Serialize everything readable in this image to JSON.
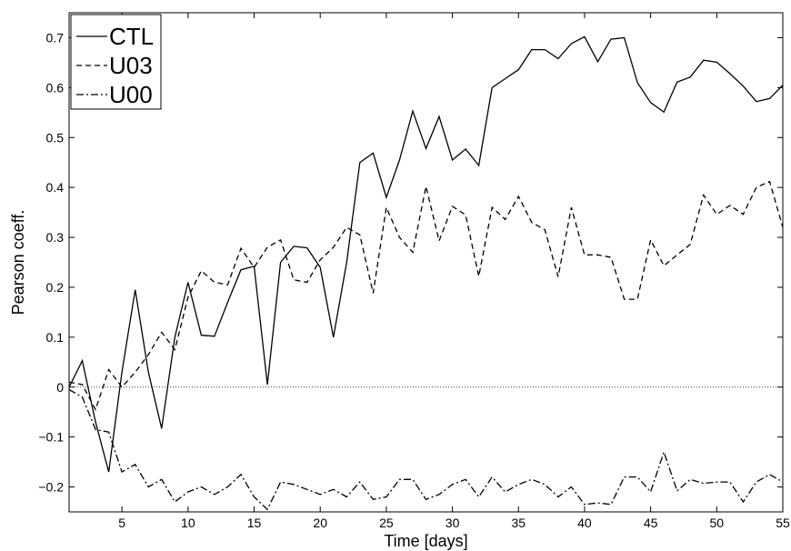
{
  "chart_data": {
    "type": "line",
    "xlabel": "Time [days]",
    "ylabel": "Pearson coeff.",
    "xlim": [
      1,
      55
    ],
    "ylim": [
      -0.25,
      0.75
    ],
    "xticks": [
      5,
      10,
      15,
      20,
      25,
      30,
      35,
      40,
      45,
      50,
      55
    ],
    "yticks": [
      -0.2,
      -0.1,
      0,
      0.1,
      0.2,
      0.3,
      0.4,
      0.5,
      0.6,
      0.7
    ],
    "x": [
      1,
      2,
      3,
      4,
      5,
      6,
      7,
      8,
      9,
      10,
      11,
      12,
      13,
      14,
      15,
      16,
      17,
      18,
      19,
      20,
      21,
      22,
      23,
      24,
      25,
      26,
      27,
      28,
      29,
      30,
      31,
      32,
      33,
      34,
      35,
      36,
      37,
      38,
      39,
      40,
      41,
      42,
      43,
      44,
      45,
      46,
      47,
      48,
      49,
      50,
      51,
      52,
      53,
      54,
      55
    ],
    "grid": false,
    "legend_position": "top-left",
    "zero_line": true,
    "series": [
      {
        "name": "CTL",
        "dash": "solid",
        "values": [
          0.0,
          0.053,
          -0.07,
          -0.17,
          0.03,
          0.195,
          0.03,
          -0.083,
          0.1,
          0.21,
          0.104,
          0.102,
          0.17,
          0.235,
          0.242,
          0.005,
          0.25,
          0.282,
          0.279,
          0.24,
          0.1,
          0.25,
          0.45,
          0.469,
          0.38,
          0.455,
          0.553,
          0.478,
          0.542,
          0.455,
          0.477,
          0.444,
          0.6,
          0.618,
          0.636,
          0.676,
          0.676,
          0.658,
          0.688,
          0.702,
          0.652,
          0.697,
          0.7,
          0.61,
          0.57,
          0.551,
          0.611,
          0.621,
          0.655,
          0.651,
          0.628,
          0.603,
          0.572,
          0.578,
          0.605
        ]
      },
      {
        "name": "U03",
        "dash": "dashed",
        "values": [
          0.01,
          0.005,
          -0.045,
          0.035,
          0.0,
          0.03,
          0.065,
          0.11,
          0.075,
          0.18,
          0.233,
          0.21,
          0.205,
          0.278,
          0.24,
          0.28,
          0.295,
          0.215,
          0.21,
          0.255,
          0.28,
          0.32,
          0.305,
          0.188,
          0.36,
          0.3,
          0.27,
          0.402,
          0.293,
          0.362,
          0.345,
          0.222,
          0.36,
          0.336,
          0.382,
          0.33,
          0.315,
          0.221,
          0.36,
          0.265,
          0.265,
          0.26,
          0.176,
          0.176,
          0.295,
          0.243,
          0.265,
          0.286,
          0.385,
          0.346,
          0.364,
          0.346,
          0.4,
          0.412,
          0.32
        ]
      },
      {
        "name": "U00",
        "dash": "dashdot",
        "values": [
          -0.005,
          -0.02,
          -0.085,
          -0.09,
          -0.17,
          -0.155,
          -0.2,
          -0.185,
          -0.23,
          -0.21,
          -0.2,
          -0.215,
          -0.2,
          -0.175,
          -0.22,
          -0.245,
          -0.19,
          -0.195,
          -0.205,
          -0.215,
          -0.205,
          -0.22,
          -0.19,
          -0.225,
          -0.22,
          -0.185,
          -0.185,
          -0.225,
          -0.215,
          -0.195,
          -0.185,
          -0.22,
          -0.18,
          -0.21,
          -0.195,
          -0.185,
          -0.195,
          -0.22,
          -0.2,
          -0.235,
          -0.232,
          -0.235,
          -0.18,
          -0.18,
          -0.21,
          -0.13,
          -0.208,
          -0.185,
          -0.193,
          -0.19,
          -0.19,
          -0.23,
          -0.19,
          -0.175,
          -0.19
        ]
      }
    ]
  }
}
